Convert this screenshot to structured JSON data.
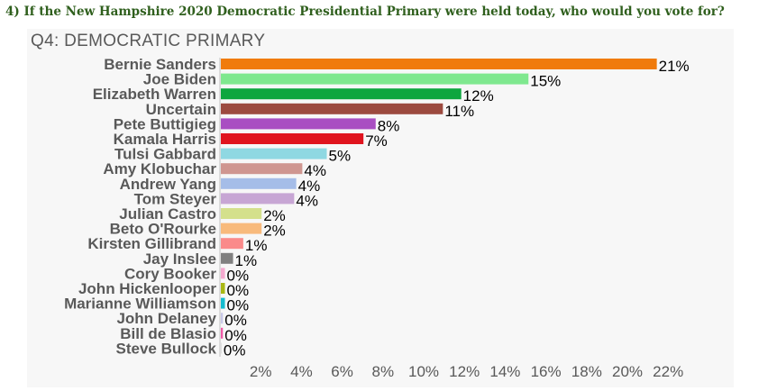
{
  "question": "4) If the New Hampshire 2020 Democratic Presidential Primary were held today, who would you vote for?",
  "chart_data": {
    "type": "bar",
    "orientation": "horizontal",
    "title": "Q4: DEMOCRATIC PRIMARY",
    "categories": [
      "Bernie Sanders",
      "Joe Biden",
      "Elizabeth Warren",
      "Uncertain",
      "Pete Buttigieg",
      "Kamala Harris",
      "Tulsi Gabbard",
      "Amy Klobuchar",
      "Andrew Yang",
      "Tom Steyer",
      "Julian Castro",
      "Beto O'Rourke",
      "Kirsten Gillibrand",
      "Jay Inslee",
      "Cory Booker",
      "John Hickenlooper",
      "Marianne Williamson",
      "John Delaney",
      "Bill de Blasio",
      "Steve Bullock"
    ],
    "values": [
      21.4,
      15.1,
      11.8,
      10.9,
      7.6,
      7.0,
      5.2,
      4.0,
      3.7,
      3.6,
      2.0,
      2.0,
      1.1,
      0.6,
      0.2,
      0.2,
      0.2,
      0.1,
      0.1,
      0.0
    ],
    "value_labels": [
      "21%",
      "15%",
      "12%",
      "11%",
      "8%",
      "7%",
      "5%",
      "4%",
      "4%",
      "4%",
      "2%",
      "2%",
      "1%",
      "1%",
      "0%",
      "0%",
      "0%",
      "0%",
      "0%",
      "0%"
    ],
    "colors": [
      "#f07b0c",
      "#7fe88f",
      "#0ea63f",
      "#9c4a3f",
      "#a94ec2",
      "#e0141e",
      "#8fd8e2",
      "#cf9690",
      "#a5bde8",
      "#c7a6d4",
      "#d4e08c",
      "#f8ba7c",
      "#fa8a8a",
      "#808080",
      "#f4a9cf",
      "#aab814",
      "#15bccf",
      "#c8c8e8",
      "#f05aa8",
      "#dddddd"
    ],
    "xticks": [
      "2%",
      "4%",
      "6%",
      "8%",
      "10%",
      "12%",
      "14%",
      "16%",
      "18%",
      "20%",
      "22%"
    ],
    "xlim": [
      0,
      25
    ],
    "grid": false,
    "legend": "none"
  }
}
